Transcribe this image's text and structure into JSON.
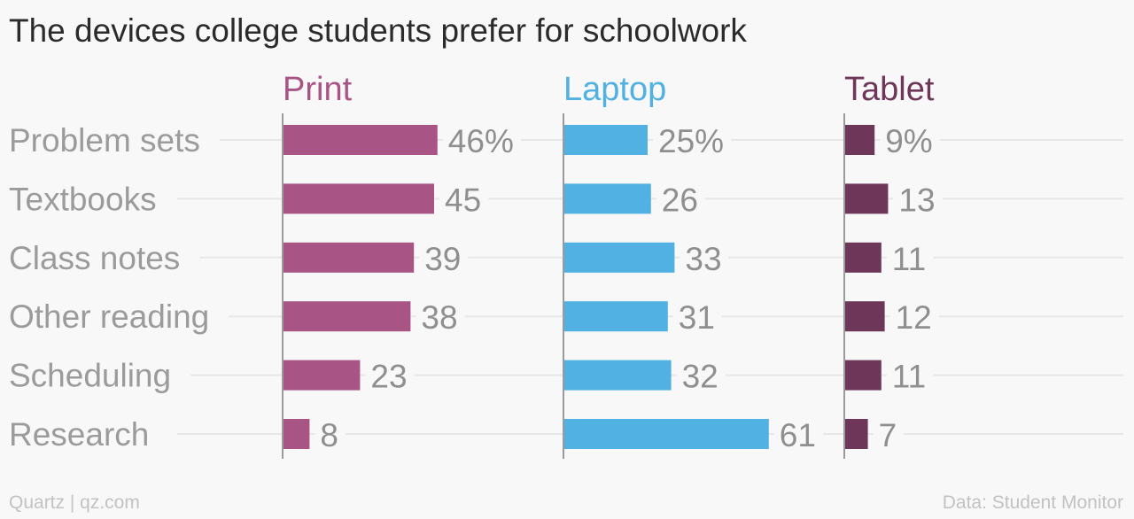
{
  "title": "The devices college students prefer for schoolwork",
  "footer": {
    "credit": "Quartz | qz.com",
    "source": "Data: Student Monitor"
  },
  "chart_data": {
    "type": "bar",
    "orientation": "horizontal",
    "title": "The devices college students prefer for schoolwork",
    "categories": [
      "Problem sets",
      "Textbooks",
      "Class notes",
      "Other reading",
      "Scheduling",
      "Research"
    ],
    "series": [
      {
        "name": "Print",
        "values": [
          46,
          45,
          39,
          38,
          23,
          8
        ],
        "labels": [
          "46%",
          "45",
          "39",
          "38",
          "23",
          "8"
        ],
        "color": "#a85586"
      },
      {
        "name": "Laptop",
        "values": [
          25,
          26,
          33,
          31,
          32,
          61
        ],
        "labels": [
          "25%",
          "26",
          "33",
          "31",
          "32",
          "61"
        ],
        "color": "#51b1e2"
      },
      {
        "name": "Tablet",
        "values": [
          9,
          13,
          11,
          12,
          11,
          7
        ],
        "labels": [
          "9%",
          "13",
          "11",
          "12",
          "11",
          "7"
        ],
        "color": "#6e3658"
      }
    ],
    "unit": "%",
    "grid": true,
    "colors": {
      "category_label": "#9b9b9b",
      "value_label": "#8f8f8f",
      "gridline": "#e7e7e7",
      "axis": "#9a9a9a"
    }
  }
}
